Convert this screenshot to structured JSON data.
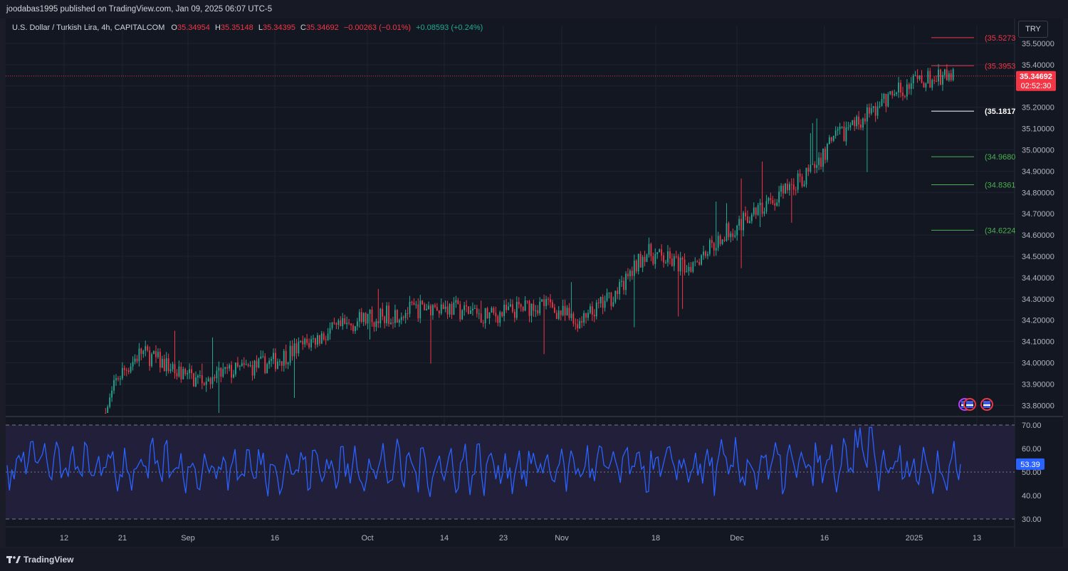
{
  "header": {
    "publisher": "joodabas1995 published on TradingView.com, Jan 09, 2025 06:07 UTC-5"
  },
  "legend": {
    "symbol": "U.S. Dollar / Turkish Lira, 4h, CAPITALCOM",
    "open_label": "O",
    "open": "35.34954",
    "high_label": "H",
    "high": "35.35148",
    "low_label": "L",
    "low": "35.34395",
    "close_label": "C",
    "close": "35.34692",
    "change": "−0.00263 (−0.01%)",
    "change2": "+0.08593 (+0.24%)"
  },
  "currency_button": "TRY",
  "price_badge": {
    "price": "35.34692",
    "countdown": "02:52:30"
  },
  "rsi_badge": "53.39",
  "levels": [
    {
      "label": "(35.5273",
      "value": 35.5273,
      "color": "#f23645",
      "text_color": "#f23645"
    },
    {
      "label": "(35.3953",
      "value": 35.3953,
      "color": "#f23645",
      "text_color": "#f23645"
    },
    {
      "label": "(35.1817",
      "value": 35.1817,
      "color": "#ffffff",
      "text_color": "#ffffff"
    },
    {
      "label": "(34.9680",
      "value": 34.968,
      "color": "#4caf50",
      "text_color": "#4caf50"
    },
    {
      "label": "(34.8361",
      "value": 34.8361,
      "color": "#4caf50",
      "text_color": "#4caf50"
    },
    {
      "label": "(34.6224",
      "value": 34.6224,
      "color": "#4caf50",
      "text_color": "#4caf50"
    }
  ],
  "footer": {
    "brand": "TradingView"
  },
  "chart_data": [
    {
      "type": "candlestick",
      "title": "U.S. Dollar / Turkish Lira, 4h, CAPITALCOM",
      "y_ticks": [
        "35.50000",
        "35.40000",
        "35.30000",
        "35.20000",
        "35.10000",
        "35.00000",
        "34.90000",
        "34.80000",
        "34.70000",
        "34.60000",
        "34.50000",
        "34.40000",
        "34.30000",
        "34.20000",
        "34.10000",
        "34.00000",
        "33.90000",
        "33.80000"
      ],
      "ylim": [
        33.76,
        35.58
      ],
      "x_ticks": [
        "12",
        "21",
        "Sep",
        "16",
        "Oct",
        "14",
        "23",
        "Nov",
        "18",
        "Dec",
        "16",
        "2025",
        "13"
      ],
      "last_price": 35.34692,
      "grid": true,
      "trend_points": [
        {
          "date": "Aug 19",
          "close": 33.76
        },
        {
          "date": "Aug 21",
          "close": 33.93
        },
        {
          "date": "Aug 25",
          "close": 34.05
        },
        {
          "date": "Sep 3",
          "close": 33.92
        },
        {
          "date": "Sep 16",
          "close": 34.0
        },
        {
          "date": "Sep 24",
          "close": 34.12
        },
        {
          "date": "Oct 1",
          "close": 34.2
        },
        {
          "date": "Oct 14",
          "close": 34.27
        },
        {
          "date": "Oct 23",
          "close": 34.22
        },
        {
          "date": "Nov 1",
          "close": 34.28
        },
        {
          "date": "Nov 7",
          "close": 34.18
        },
        {
          "date": "Nov 14",
          "close": 34.35
        },
        {
          "date": "Nov 18",
          "close": 34.52
        },
        {
          "date": "Nov 25",
          "close": 34.45
        },
        {
          "date": "Dec 2",
          "close": 34.62
        },
        {
          "date": "Dec 9",
          "close": 34.75
        },
        {
          "date": "Dec 16",
          "close": 34.9
        },
        {
          "date": "Dec 20",
          "close": 35.05
        },
        {
          "date": "Dec 26",
          "close": 35.18
        },
        {
          "date": "Dec 31",
          "close": 35.28
        },
        {
          "date": "Jan 3",
          "close": 35.32
        },
        {
          "date": "Jan 9",
          "close": 35.347
        }
      ]
    },
    {
      "type": "line",
      "title": "",
      "y_ticks": [
        "70.00",
        "60.00",
        "50.00",
        "40.00",
        "30.00"
      ],
      "ylim": [
        30,
        70
      ],
      "last_value": 53.39,
      "band": [
        30,
        70
      ],
      "mid_line": 50
    }
  ]
}
